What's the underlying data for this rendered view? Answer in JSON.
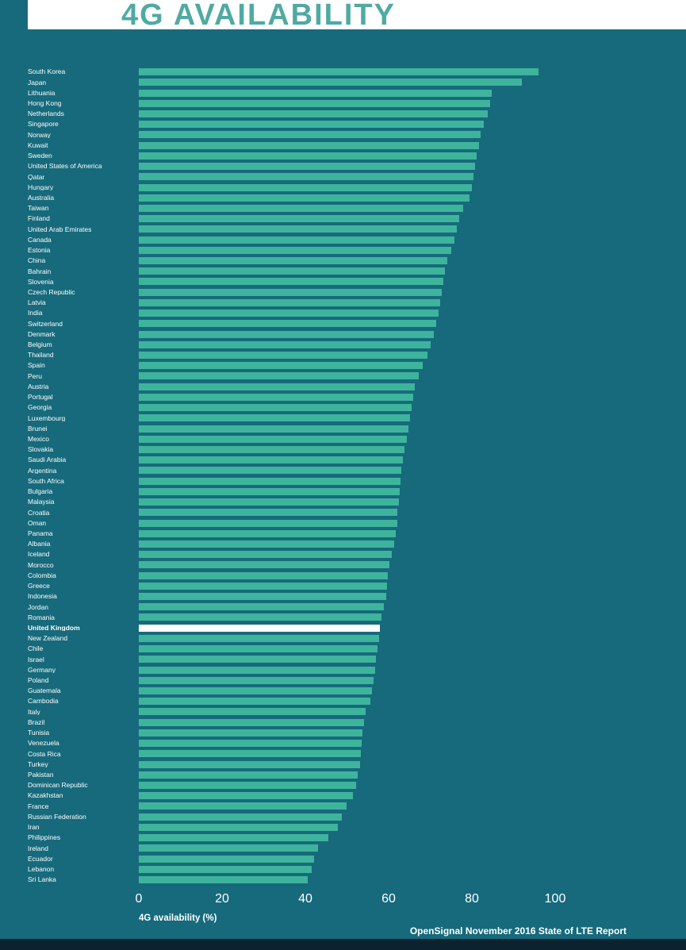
{
  "title": "4G AVAILABILITY",
  "source": "OpenSignal November 2016 State of LTE Report",
  "colors": {
    "background": "#166a7c",
    "bar": "#3fb49c",
    "highlight_bar": "#ffffff",
    "title_text": "#4faaa2",
    "label_text": "#ffffff",
    "header_background": "#ffffff",
    "bottom_bar": "#0c222e"
  },
  "chart_data": {
    "type": "bar",
    "orientation": "horizontal",
    "title": "4G AVAILABILITY",
    "xlabel": "4G availability (%)",
    "ylabel": "",
    "xlim": [
      0,
      110
    ],
    "xticks": [
      0,
      20,
      40,
      60,
      80,
      100
    ],
    "grid": false,
    "legend": false,
    "highlight_category": "United Kingdom",
    "categories": [
      "South Korea",
      "Japan",
      "Lithuania",
      "Hong Kong",
      "Netherlands",
      "Singapore",
      "Norway",
      "Kuwait",
      "Sweden",
      "United States of America",
      "Qatar",
      "Hungary",
      "Australia",
      "Taiwan",
      "Finland",
      "United Arab Emirates",
      "Canada",
      "Estonia",
      "China",
      "Bahrain",
      "Slovenia",
      "Czech Republic",
      "Latvia",
      "India",
      "Switzerland",
      "Denmark",
      "Belgium",
      "Thailand",
      "Spain",
      "Peru",
      "Austria",
      "Portugal",
      "Georgia",
      "Luxembourg",
      "Brunei",
      "Mexico",
      "Slovakia",
      "Saudi Arabia",
      "Argentina",
      "South Africa",
      "Bulgaria",
      "Malaysia",
      "Croatia",
      "Oman",
      "Panama",
      "Albania",
      "Iceland",
      "Morocco",
      "Colombia",
      "Greece",
      "Indonesia",
      "Jordan",
      "Romania",
      "United Kingdom",
      "New Zealand",
      "Chile",
      "Israel",
      "Germany",
      "Poland",
      "Guatemala",
      "Cambodia",
      "Italy",
      "Brazil",
      "Tunisia",
      "Venezuela",
      "Costa Rica",
      "Turkey",
      "Pakistan",
      "Dominican Republic",
      "Kazakhstan",
      "France",
      "Russian Federation",
      "Iran",
      "Philippines",
      "Ireland",
      "Ecuador",
      "Lebanon",
      "Sri Lanka"
    ],
    "values": [
      96.0,
      92.0,
      84.8,
      84.4,
      83.8,
      82.9,
      82.1,
      81.7,
      81.1,
      80.8,
      80.4,
      80.0,
      79.4,
      77.9,
      77.0,
      76.4,
      75.8,
      75.0,
      74.1,
      73.5,
      73.1,
      72.8,
      72.4,
      72.0,
      71.4,
      70.9,
      70.1,
      69.3,
      68.2,
      67.2,
      66.3,
      65.9,
      65.5,
      65.1,
      64.8,
      64.4,
      63.8,
      63.4,
      63.0,
      62.9,
      62.7,
      62.5,
      62.1,
      62.0,
      61.7,
      61.3,
      60.8,
      60.2,
      59.8,
      59.6,
      59.4,
      58.9,
      58.3,
      57.9,
      57.7,
      57.3,
      56.9,
      56.8,
      56.4,
      56.0,
      55.6,
      54.5,
      54.1,
      53.7,
      53.5,
      53.3,
      53.1,
      52.6,
      52.2,
      51.4,
      49.9,
      48.8,
      47.8,
      45.5,
      43.0,
      42.1,
      41.5,
      40.6
    ]
  }
}
